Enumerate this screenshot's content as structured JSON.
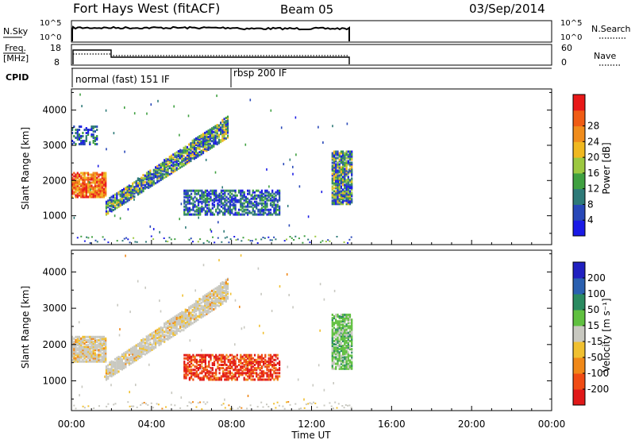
{
  "header": {
    "station": "Fort Hays West (fitACF)",
    "beam": "Beam 05",
    "date": "03/Sep/2014"
  },
  "strips": {
    "nsky_label": "N.Sky",
    "nsky_ticks": [
      "10^5",
      "10^0"
    ],
    "nsearch_label": "N.Search",
    "nsearch_ticks": [
      "10^5",
      "10^0"
    ],
    "freq_label": "Freq.",
    "freq_unit": "[MHz]",
    "freq_ticks": [
      "18",
      "8"
    ],
    "nave_label": "Nave",
    "nave_ticks": [
      "60",
      "0"
    ],
    "cpid_label": "CPID",
    "cpid_segments": [
      "normal (fast) 151 IF",
      "rbsp 200 IF"
    ]
  },
  "chart_data": [
    {
      "type": "heatmap",
      "panel": "power",
      "ylabel": "Slant Range [km]",
      "xlabel": "Time UT",
      "x_ticks": [
        "00:00",
        "04:00",
        "08:00",
        "12:00",
        "16:00",
        "20:00",
        "00:00"
      ],
      "x_range_hours": [
        0,
        24
      ],
      "data_end_hours": 14,
      "y_ticks": [
        1000,
        2000,
        3000,
        4000
      ],
      "y_range": [
        180,
        4600
      ],
      "colorbar_label": "Power [dB]",
      "colorbar_ticks": [
        "4",
        "8",
        "12",
        "16",
        "20",
        "24",
        "28"
      ],
      "colorbar_range": [
        0,
        30
      ],
      "colorbar_colors": [
        "#1a1ae6",
        "#2848b8",
        "#2e7a78",
        "#3fa040",
        "#9cc840",
        "#f0b820",
        "#f08c1c",
        "#f05c14",
        "#e81818"
      ],
      "regions": [
        {
          "name": "early-band",
          "t": [
            0,
            1.7
          ],
          "range": [
            1500,
            2200
          ],
          "level": "high"
        },
        {
          "name": "early-upper",
          "t": [
            0,
            1.3
          ],
          "range": [
            3000,
            3500
          ],
          "level": "low"
        },
        {
          "name": "diagonal-band",
          "t": [
            1.7,
            7.8
          ],
          "range_start": [
            1000,
            1400
          ],
          "range_end": [
            3200,
            3800
          ],
          "level": "medium"
        },
        {
          "name": "mid-band",
          "t": [
            5.6,
            10.4
          ],
          "range": [
            1000,
            1700
          ],
          "level": "low"
        },
        {
          "name": "late-band",
          "t": [
            13.0,
            14.0
          ],
          "range": [
            1300,
            2800
          ],
          "level": "medium"
        }
      ]
    },
    {
      "type": "heatmap",
      "panel": "velocity",
      "ylabel": "Slant Range [km]",
      "xlabel": "Time UT",
      "x_ticks": [
        "00:00",
        "04:00",
        "08:00",
        "12:00",
        "16:00",
        "20:00",
        "00:00"
      ],
      "x_range_hours": [
        0,
        24
      ],
      "data_end_hours": 14,
      "y_ticks": [
        1000,
        2000,
        3000,
        4000
      ],
      "y_range": [
        180,
        4600
      ],
      "colorbar_label": "Velocity [m s^-1]",
      "colorbar_ticks": [
        "200",
        "100",
        "50",
        "15",
        "-15",
        "-50",
        "-100",
        "-200"
      ],
      "colorbar_colors": [
        "#2020c0",
        "#2a60b0",
        "#2a8a60",
        "#60c040",
        "#c8c8c0",
        "#f0c030",
        "#f08818",
        "#f04c14",
        "#e01818"
      ],
      "regions": [
        {
          "name": "early-band",
          "t": [
            0,
            1.7
          ],
          "range": [
            1500,
            2200
          ],
          "level": "grey"
        },
        {
          "name": "diagonal-band",
          "t": [
            1.7,
            7.8
          ],
          "range_start": [
            1000,
            1400
          ],
          "range_end": [
            3200,
            3800
          ],
          "level": "grey"
        },
        {
          "name": "mid-band",
          "t": [
            5.6,
            10.4
          ],
          "range": [
            1000,
            1700
          ],
          "level": "negative"
        },
        {
          "name": "late-band",
          "t": [
            13.0,
            14.0
          ],
          "range": [
            1300,
            2800
          ],
          "level": "positive"
        }
      ]
    }
  ]
}
